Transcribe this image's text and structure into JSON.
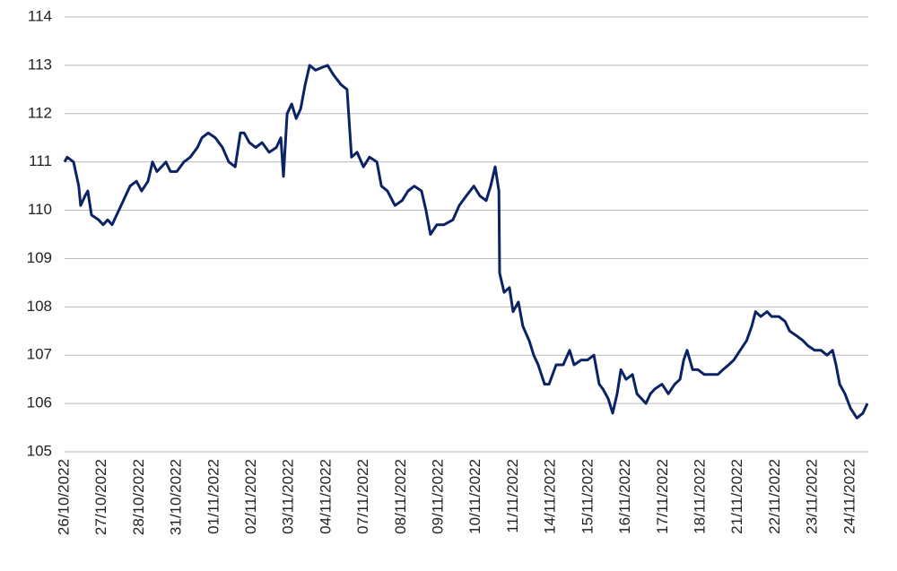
{
  "chart_data": {
    "type": "line",
    "x": [
      0,
      0.07,
      0.24,
      0.38,
      0.43,
      0.55,
      0.62,
      0.72,
      0.91,
      1.03,
      1.15,
      1.27,
      1.39,
      1.51,
      1.63,
      1.75,
      1.92,
      2.06,
      2.23,
      2.35,
      2.47,
      2.59,
      2.71,
      2.83,
      3.0,
      3.19,
      3.36,
      3.55,
      3.67,
      3.84,
      4.03,
      4.22,
      4.39,
      4.56,
      4.7,
      4.8,
      4.94,
      5.11,
      5.28,
      5.47,
      5.66,
      5.78,
      5.85,
      5.95,
      6.07,
      6.19,
      6.31,
      6.43,
      6.55,
      6.71,
      6.86,
      7.03,
      7.19,
      7.39,
      7.55,
      7.67,
      7.82,
      7.99,
      8.15,
      8.35,
      8.47,
      8.63,
      8.83,
      9.02,
      9.18,
      9.35,
      9.54,
      9.66,
      9.78,
      9.95,
      10.14,
      10.38,
      10.55,
      10.74,
      10.94,
      11.1,
      11.27,
      11.39,
      11.51,
      11.61,
      11.63,
      11.75,
      11.89,
      11.99,
      12.13,
      12.25,
      12.42,
      12.54,
      12.66,
      12.83,
      12.95,
      13.14,
      13.33,
      13.5,
      13.62,
      13.81,
      13.98,
      14.15,
      14.29,
      14.39,
      14.53,
      14.65,
      14.77,
      14.87,
      15.01,
      15.18,
      15.3,
      15.42,
      15.54,
      15.66,
      15.78,
      15.97,
      16.14,
      16.31,
      16.45,
      16.55,
      16.64,
      16.79,
      16.93,
      17.1,
      17.27,
      17.46,
      17.6,
      17.75,
      17.89,
      18.06,
      18.23,
      18.37,
      18.47,
      18.61,
      18.78,
      18.9,
      19.09,
      19.26,
      19.38,
      19.57,
      19.74,
      19.86,
      20.05,
      20.22,
      20.38,
      20.53,
      20.62,
      20.72,
      20.86,
      21.01,
      21.18,
      21.34,
      21.46
    ],
    "series": [
      {
        "color": "#0b2265",
        "values": [
          111.0,
          111.1,
          111.0,
          110.5,
          110.1,
          110.3,
          110.4,
          109.9,
          109.8,
          109.7,
          109.8,
          109.7,
          109.9,
          110.1,
          110.3,
          110.5,
          110.6,
          110.4,
          110.6,
          111.0,
          110.8,
          110.9,
          111.0,
          110.8,
          110.8,
          111.0,
          111.1,
          111.3,
          111.5,
          111.6,
          111.5,
          111.3,
          111.0,
          110.9,
          111.6,
          111.6,
          111.4,
          111.3,
          111.4,
          111.2,
          111.3,
          111.5,
          110.7,
          112.0,
          112.2,
          111.9,
          112.1,
          112.6,
          113.0,
          112.9,
          112.95,
          113.0,
          112.8,
          112.6,
          112.5,
          111.1,
          111.2,
          110.9,
          111.1,
          111.0,
          110.5,
          110.4,
          110.1,
          110.2,
          110.4,
          110.5,
          110.4,
          110.0,
          109.5,
          109.7,
          109.7,
          109.8,
          110.1,
          110.3,
          110.5,
          110.3,
          110.2,
          110.5,
          110.9,
          110.4,
          108.7,
          108.3,
          108.4,
          107.9,
          108.1,
          107.6,
          107.3,
          107.0,
          106.8,
          106.4,
          106.4,
          106.8,
          106.8,
          107.1,
          106.8,
          106.9,
          106.9,
          107.0,
          106.4,
          106.3,
          106.1,
          105.8,
          106.2,
          106.7,
          106.5,
          106.6,
          106.2,
          106.1,
          106.0,
          106.2,
          106.3,
          106.4,
          106.2,
          106.4,
          106.5,
          106.9,
          107.1,
          106.7,
          106.7,
          106.6,
          106.6,
          106.6,
          106.7,
          106.8,
          106.9,
          107.1,
          107.3,
          107.6,
          107.9,
          107.8,
          107.9,
          107.8,
          107.8,
          107.7,
          107.5,
          107.4,
          107.3,
          107.2,
          107.1,
          107.1,
          107.0,
          107.1,
          106.8,
          106.4,
          106.2,
          105.9,
          105.7,
          105.8,
          106.0
        ]
      }
    ],
    "xlim": [
      0,
      21.46
    ],
    "xticks": [
      {
        "value": 0,
        "label": "26/10/2022"
      },
      {
        "value": 1,
        "label": "27/10/2022"
      },
      {
        "value": 2,
        "label": "28/10/2022"
      },
      {
        "value": 3,
        "label": "31/10/2022"
      },
      {
        "value": 4,
        "label": "01/11/2022"
      },
      {
        "value": 5,
        "label": "02/11/2022"
      },
      {
        "value": 6,
        "label": "03/11/2022"
      },
      {
        "value": 7,
        "label": "04/11/2022"
      },
      {
        "value": 8,
        "label": "07/11/2022"
      },
      {
        "value": 9,
        "label": "08/11/2022"
      },
      {
        "value": 10,
        "label": "09/11/2022"
      },
      {
        "value": 11,
        "label": "10/11/2022"
      },
      {
        "value": 12,
        "label": "11/11/2022"
      },
      {
        "value": 13,
        "label": "14/11/2022"
      },
      {
        "value": 14,
        "label": "15/11/2022"
      },
      {
        "value": 15,
        "label": "16/11/2022"
      },
      {
        "value": 16,
        "label": "17/11/2022"
      },
      {
        "value": 17,
        "label": "18/11/2022"
      },
      {
        "value": 18,
        "label": "21/11/2022"
      },
      {
        "value": 19,
        "label": "22/11/2022"
      },
      {
        "value": 20,
        "label": "23/11/2022"
      },
      {
        "value": 21,
        "label": "24/11/2022"
      }
    ],
    "ylim": [
      105,
      114
    ],
    "yticks": [
      105,
      106,
      107,
      108,
      109,
      110,
      111,
      112,
      113,
      114
    ],
    "grid": true
  }
}
